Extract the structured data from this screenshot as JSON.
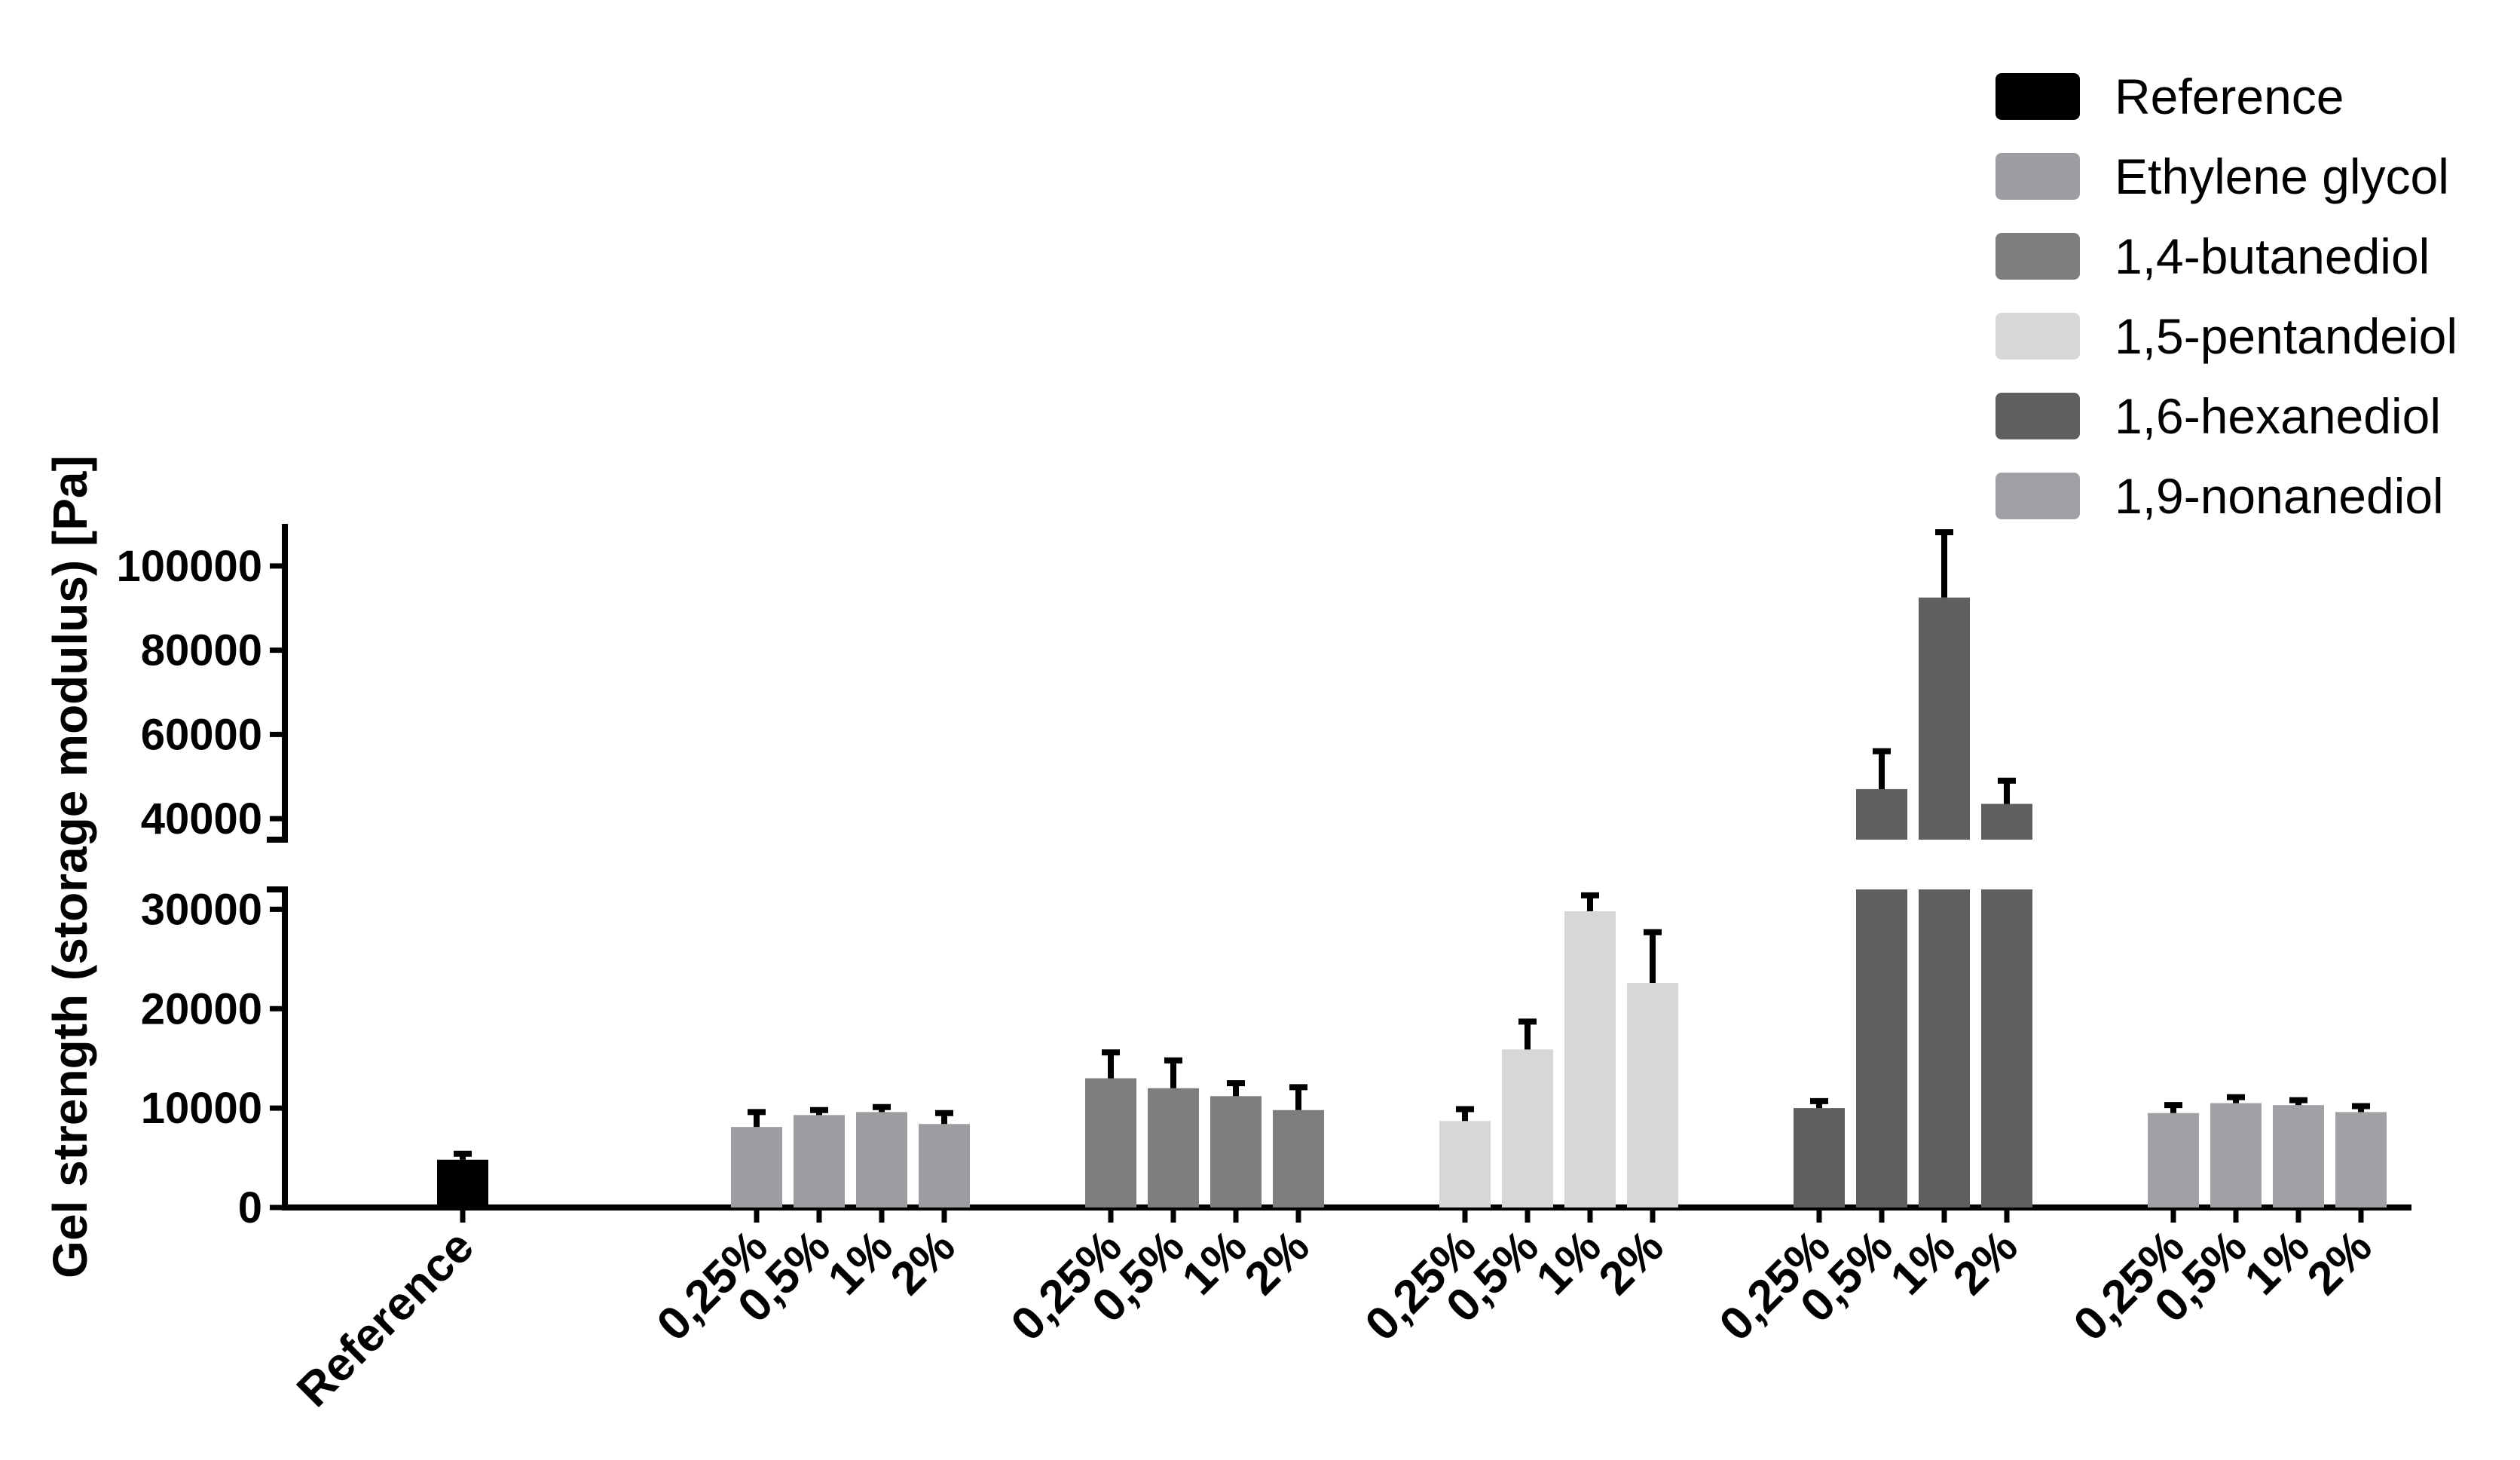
{
  "chart_data": {
    "type": "bar",
    "ylabel": "Gel strength (storage modulus) [Pa]",
    "xlabel": "",
    "y_axis_break": [
      32000,
      35000
    ],
    "ylim_lower": [
      0,
      32000
    ],
    "ylim_upper": [
      35000,
      110000
    ],
    "yticks_lower": [
      "0",
      "10000",
      "20000",
      "30000"
    ],
    "yticks_upper": [
      "40000",
      "60000",
      "80000",
      "100000"
    ],
    "legend_position": "top-right",
    "legend": [
      {
        "name": "Reference",
        "color": "#000000"
      },
      {
        "name": "Ethylene glycol",
        "color": "#9d9ca1"
      },
      {
        "name": "1,4-butanediol",
        "color": "#7e7e7e"
      },
      {
        "name": "1,5-pentandeiol",
        "color": "#d7d7d7"
      },
      {
        "name": "1,6-hexanediol",
        "color": "#5f5f5f"
      },
      {
        "name": "1,9-nonanediol",
        "color": "#a1a0a5"
      }
    ],
    "groups": [
      {
        "series": "Reference",
        "color": "#000000",
        "labels": [
          "Reference"
        ],
        "values": [
          4800
        ],
        "errors": [
          600
        ]
      },
      {
        "series": "Ethylene glycol",
        "color": "#9d9ca1",
        "labels": [
          "0,25%",
          "0,5%",
          "1%",
          "2%"
        ],
        "values": [
          8100,
          9300,
          9600,
          8400
        ],
        "errors": [
          1500,
          500,
          500,
          1100
        ]
      },
      {
        "series": "1,4-butanediol",
        "color": "#7e7e7e",
        "labels": [
          "0,25%",
          "0,5%",
          "1%",
          "2%"
        ],
        "values": [
          13000,
          12000,
          11200,
          9800
        ],
        "errors": [
          2600,
          2800,
          1300,
          2300
        ]
      },
      {
        "series": "1,5-pentandeiol",
        "color": "#d7d7d7",
        "labels": [
          "0,25%",
          "0,5%",
          "1%",
          "2%"
        ],
        "values": [
          8700,
          15900,
          29800,
          22600
        ],
        "errors": [
          1200,
          2800,
          1600,
          5100
        ]
      },
      {
        "series": "1,6-hexanediol",
        "color": "#5f5f5f",
        "labels": [
          "0,25%",
          "0,5%",
          "1%",
          "2%"
        ],
        "values": [
          10000,
          47000,
          92500,
          43500
        ],
        "errors": [
          700,
          9000,
          15500,
          5500
        ]
      },
      {
        "series": "1,9-nonanediol",
        "color": "#a1a0a5",
        "labels": [
          "0,25%",
          "0,5%",
          "1%",
          "2%"
        ],
        "values": [
          9500,
          10500,
          10300,
          9600
        ],
        "errors": [
          800,
          600,
          500,
          600
        ]
      }
    ]
  }
}
